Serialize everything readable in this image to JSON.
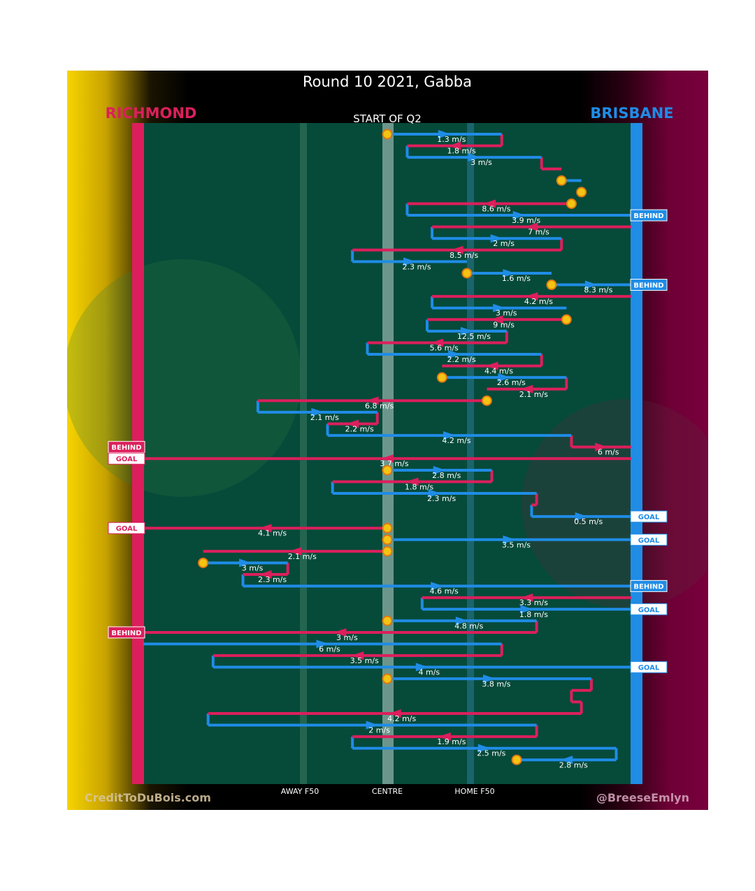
{
  "title": "Round 10 2021, Gabba",
  "credit_left": "CreditToDuBois.com",
  "credit_right": "@BreeseEmlyn",
  "colors": {
    "richmond": "#dc1f5c",
    "brisbane": "#1f8ce6",
    "field": "#064a3a",
    "stoppage": "#f4c313"
  },
  "chart_data": {
    "type": "line",
    "teams": {
      "left": "RICHMOND",
      "right": "BRISBANE"
    },
    "start_label": "START OF Q2",
    "x_ticks": [
      "AWAY F50",
      "CENTRE",
      "HOME F50"
    ],
    "chains": [
      {
        "team": "brisbane",
        "x1": 0,
        "x2": 0.23,
        "speed": "1.3 m/s",
        "start": "stoppage"
      },
      {
        "team": "richmond",
        "x1": 0.23,
        "x2": 0.04,
        "speed": "1.8 m/s"
      },
      {
        "team": "brisbane",
        "x1": 0.04,
        "x2": 0.31,
        "speed": "3 m/s"
      },
      {
        "team": "richmond",
        "x1": 0.31,
        "x2": 0.35,
        "speed": ""
      },
      {
        "team": "brisbane",
        "x1": 0.35,
        "x2": 0.39,
        "speed": "",
        "start": "stoppage"
      },
      {
        "team": "brisbane",
        "x1": 0.39,
        "x2": 0.38,
        "speed": "",
        "start": "stoppage"
      },
      {
        "team": "richmond",
        "x1": 0.37,
        "x2": 0.04,
        "speed": "8.6 m/s",
        "start": "stoppage"
      },
      {
        "team": "brisbane",
        "x1": 0.04,
        "x2": 0.49,
        "speed": "3.9 m/s",
        "result": "BEHIND"
      },
      {
        "team": "richmond",
        "x1": 0.49,
        "x2": 0.09,
        "speed": "7 m/s"
      },
      {
        "team": "brisbane",
        "x1": 0.09,
        "x2": 0.35,
        "speed": "2 m/s"
      },
      {
        "team": "richmond",
        "x1": 0.35,
        "x2": -0.07,
        "speed": "8.5 m/s"
      },
      {
        "team": "brisbane",
        "x1": -0.07,
        "x2": 0.16,
        "speed": "2.3 m/s"
      },
      {
        "team": "brisbane",
        "x1": 0.16,
        "x2": 0.33,
        "speed": "1.6 m/s",
        "start": "stoppage"
      },
      {
        "team": "brisbane",
        "x1": 0.33,
        "x2": 0.49,
        "speed": "8.3 m/s",
        "start": "stoppage",
        "result": "BEHIND"
      },
      {
        "team": "richmond",
        "x1": 0.49,
        "x2": 0.09,
        "speed": "4.2 m/s"
      },
      {
        "team": "brisbane",
        "x1": 0.09,
        "x2": 0.36,
        "speed": "3 m/s"
      },
      {
        "team": "richmond",
        "x1": 0.36,
        "x2": 0.08,
        "speed": "9 m/s",
        "start": "stoppage"
      },
      {
        "team": "brisbane",
        "x1": 0.08,
        "x2": 0.24,
        "speed": "12.5 m/s"
      },
      {
        "team": "richmond",
        "x1": 0.24,
        "x2": -0.04,
        "speed": "5.6 m/s"
      },
      {
        "team": "brisbane",
        "x1": -0.04,
        "x2": 0.31,
        "speed": "2.2 m/s"
      },
      {
        "team": "richmond",
        "x1": 0.31,
        "x2": 0.11,
        "speed": "4.4 m/s"
      },
      {
        "team": "brisbane",
        "x1": 0.11,
        "x2": 0.36,
        "speed": "2.6 m/s",
        "start": "stoppage"
      },
      {
        "team": "richmond",
        "x1": 0.36,
        "x2": 0.2,
        "speed": "2.1 m/s"
      },
      {
        "team": "richmond",
        "x1": 0.2,
        "x2": -0.26,
        "speed": "6.8 m/s",
        "start": "stoppage"
      },
      {
        "team": "brisbane",
        "x1": -0.26,
        "x2": -0.02,
        "speed": "2.1 m/s"
      },
      {
        "team": "richmond",
        "x1": -0.02,
        "x2": -0.12,
        "speed": "2.2 m/s"
      },
      {
        "team": "brisbane",
        "x1": -0.12,
        "x2": 0.37,
        "speed": "4.2 m/s"
      },
      {
        "team": "richmond",
        "x1": 0.37,
        "x2": 0.49,
        "speed": "6 m/s",
        "result": "BEHIND"
      },
      {
        "team": "richmond",
        "x1": 0.49,
        "x2": -0.49,
        "speed": "3.7 m/s",
        "result": "GOAL"
      },
      {
        "team": "brisbane",
        "x1": 0,
        "x2": 0.21,
        "speed": "2.8 m/s",
        "start": "stoppage"
      },
      {
        "team": "richmond",
        "x1": 0.21,
        "x2": -0.11,
        "speed": "1.8 m/s"
      },
      {
        "team": "brisbane",
        "x1": -0.11,
        "x2": 0.3,
        "speed": "2.3 m/s"
      },
      {
        "team": "richmond",
        "x1": 0.3,
        "x2": 0.29,
        "speed": ""
      },
      {
        "team": "brisbane",
        "x1": 0.29,
        "x2": 0.49,
        "speed": "0.5 m/s",
        "result": "GOAL"
      },
      {
        "team": "richmond",
        "x1": 0,
        "x2": -0.49,
        "speed": "4.1 m/s",
        "start": "stoppage",
        "result": "GOAL"
      },
      {
        "team": "brisbane",
        "x1": 0,
        "x2": 0.49,
        "speed": "3.5 m/s",
        "start": "stoppage",
        "result": "GOAL"
      },
      {
        "team": "richmond",
        "x1": 0,
        "x2": -0.37,
        "speed": "2.1 m/s",
        "start": "stoppage"
      },
      {
        "team": "brisbane",
        "x1": -0.37,
        "x2": -0.2,
        "speed": "3 m/s",
        "start": "stoppage"
      },
      {
        "team": "richmond",
        "x1": -0.2,
        "x2": -0.29,
        "speed": "2.3 m/s"
      },
      {
        "team": "brisbane",
        "x1": -0.29,
        "x2": 0.49,
        "speed": "4.6 m/s",
        "result": "BEHIND"
      },
      {
        "team": "richmond",
        "x1": 0.49,
        "x2": 0.07,
        "speed": "3.3 m/s"
      },
      {
        "team": "brisbane",
        "x1": 0.07,
        "x2": 0.49,
        "speed": "1.8 m/s",
        "result": "GOAL"
      },
      {
        "team": "brisbane",
        "x1": 0,
        "x2": 0.3,
        "speed": "4.8 m/s",
        "start": "stoppage"
      },
      {
        "team": "richmond",
        "x1": 0.3,
        "x2": -0.49,
        "speed": "3 m/s",
        "result": "BEHIND"
      },
      {
        "team": "brisbane",
        "x1": -0.49,
        "x2": 0.23,
        "speed": "6 m/s"
      },
      {
        "team": "richmond",
        "x1": 0.23,
        "x2": -0.35,
        "speed": "3.5 m/s"
      },
      {
        "team": "brisbane",
        "x1": -0.35,
        "x2": 0.49,
        "speed": "4 m/s",
        "result": "GOAL"
      },
      {
        "team": "brisbane",
        "x1": 0,
        "x2": 0.41,
        "speed": "3.8 m/s",
        "start": "stoppage"
      },
      {
        "team": "richmond",
        "x1": 0.41,
        "x2": 0.37,
        "speed": ""
      },
      {
        "team": "richmond",
        "x1": 0.37,
        "x2": 0.39,
        "speed": ""
      },
      {
        "team": "richmond",
        "x1": 0.39,
        "x2": -0.36,
        "speed": "4.2 m/s"
      },
      {
        "team": "brisbane",
        "x1": -0.36,
        "x2": 0.3,
        "speed": "2 m/s"
      },
      {
        "team": "richmond",
        "x1": 0.3,
        "x2": -0.07,
        "speed": "1.9 m/s"
      },
      {
        "team": "brisbane",
        "x1": -0.07,
        "x2": 0.46,
        "speed": "2.5 m/s"
      },
      {
        "team": "brisbane",
        "x1": 0.46,
        "x2": 0.26,
        "speed": "2.8 m/s",
        "end": "stoppage"
      }
    ]
  }
}
